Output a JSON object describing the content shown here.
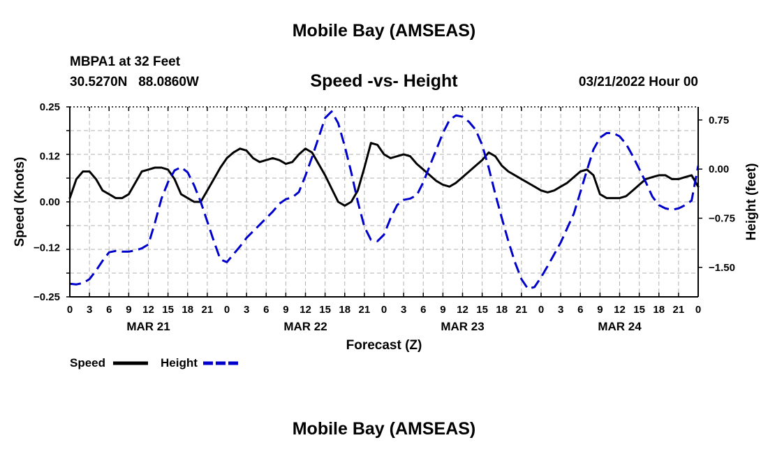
{
  "header": {
    "title": "Mobile Bay (AMSEAS)",
    "station": "MBPA1 at 32 Feet",
    "coordinates": "30.5270N   88.0860W",
    "subtitle": "Speed -vs- Height",
    "datetime": "03/21/2022 Hour 00"
  },
  "footer": {
    "title": "Mobile Bay (AMSEAS)"
  },
  "legend": {
    "speed_label": "Speed",
    "height_label": "Height"
  },
  "colors": {
    "speed": "#000000",
    "height": "#0000cc",
    "grid": "#b0b0b0"
  },
  "chart_data": {
    "type": "line",
    "title": "Speed -vs- Height",
    "xlabel": "Forecast (Z)",
    "ylabel": "Speed (Knots)",
    "y2label": "Height (feet)",
    "xlim": [
      0,
      96
    ],
    "ylim": [
      -0.25,
      0.25
    ],
    "y2lim": [
      -1.95,
      0.95
    ],
    "x_tick_labels": [
      "0",
      "3",
      "6",
      "9",
      "12",
      "15",
      "18",
      "21",
      "0",
      "3",
      "6",
      "9",
      "12",
      "15",
      "18",
      "21",
      "0",
      "3",
      "6",
      "9",
      "12",
      "15",
      "18",
      "21",
      "0",
      "3",
      "6",
      "9",
      "12",
      "15",
      "18",
      "21",
      "0"
    ],
    "x_day_labels": [
      {
        "label": "MAR 21",
        "hour": 12
      },
      {
        "label": "MAR 22",
        "hour": 36
      },
      {
        "label": "MAR 23",
        "hour": 60
      },
      {
        "label": "MAR 24",
        "hour": 84
      }
    ],
    "y_ticks": [
      -0.25,
      -0.12,
      0.0,
      0.12,
      0.25
    ],
    "y_tick_labels": [
      "−0.25",
      "−0.12",
      "0.00",
      "0.12",
      "0.25"
    ],
    "y2_ticks": [
      -1.5,
      -0.75,
      0.0,
      0.75
    ],
    "y2_tick_labels": [
      "−1.50",
      "−0.75",
      "0.00",
      "0.75"
    ],
    "series": [
      {
        "name": "Speed",
        "axis": "left",
        "color": "#000000",
        "dash": "solid",
        "x": [
          0,
          1,
          2,
          3,
          4,
          5,
          6,
          7,
          8,
          9,
          10,
          11,
          12,
          13,
          14,
          15,
          16,
          17,
          18,
          19,
          20,
          21,
          22,
          23,
          24,
          25,
          26,
          27,
          28,
          29,
          30,
          31,
          32,
          33,
          34,
          35,
          36,
          37,
          38,
          39,
          40,
          41,
          42,
          43,
          44,
          45,
          46,
          47,
          48,
          49,
          50,
          51,
          52,
          53,
          54,
          55,
          56,
          57,
          58,
          59,
          60,
          61,
          62,
          63,
          64,
          65,
          66,
          67,
          68,
          69,
          70,
          71,
          72,
          73,
          74,
          75,
          76,
          77,
          78,
          79,
          80,
          81,
          82,
          83,
          84,
          85,
          86,
          87,
          88,
          89,
          90,
          91,
          92,
          93,
          94,
          95,
          96
        ],
        "values": [
          0.01,
          0.06,
          0.08,
          0.08,
          0.06,
          0.03,
          0.02,
          0.01,
          0.01,
          0.02,
          0.05,
          0.08,
          0.085,
          0.09,
          0.09,
          0.085,
          0.06,
          0.02,
          0.01,
          0.0,
          0.0,
          0.03,
          0.06,
          0.09,
          0.115,
          0.13,
          0.14,
          0.135,
          0.115,
          0.105,
          0.11,
          0.115,
          0.11,
          0.1,
          0.105,
          0.125,
          0.14,
          0.13,
          0.1,
          0.07,
          0.035,
          0.0,
          -0.01,
          0.0,
          0.03,
          0.09,
          0.155,
          0.15,
          0.125,
          0.115,
          0.12,
          0.125,
          0.12,
          0.1,
          0.085,
          0.07,
          0.055,
          0.045,
          0.04,
          0.05,
          0.065,
          0.08,
          0.095,
          0.11,
          0.13,
          0.12,
          0.095,
          0.08,
          0.07,
          0.06,
          0.05,
          0.04,
          0.03,
          0.025,
          0.03,
          0.04,
          0.05,
          0.065,
          0.08,
          0.085,
          0.07,
          0.02,
          0.01,
          0.01,
          0.01,
          0.015,
          0.03,
          0.045,
          0.06,
          0.065,
          0.07,
          0.07,
          0.06,
          0.06,
          0.065,
          0.07,
          0.04
        ]
      },
      {
        "name": "Height",
        "axis": "right",
        "color": "#0000cc",
        "dash": "dashed",
        "x": [
          0,
          1,
          2,
          3,
          4,
          5,
          6,
          7,
          8,
          9,
          10,
          11,
          12,
          13,
          14,
          15,
          16,
          17,
          18,
          19,
          20,
          21,
          22,
          23,
          24,
          25,
          26,
          27,
          28,
          29,
          30,
          31,
          32,
          33,
          34,
          35,
          36,
          37,
          38,
          39,
          40,
          41,
          42,
          43,
          44,
          45,
          46,
          47,
          48,
          49,
          50,
          51,
          52,
          53,
          54,
          55,
          56,
          57,
          58,
          59,
          60,
          61,
          62,
          63,
          64,
          65,
          66,
          67,
          68,
          69,
          70,
          71,
          72,
          73,
          74,
          75,
          76,
          77,
          78,
          79,
          80,
          81,
          82,
          83,
          84,
          85,
          86,
          87,
          88,
          89,
          90,
          91,
          92,
          93,
          94,
          95,
          96
        ],
        "values": [
          -1.75,
          -1.76,
          -1.74,
          -1.68,
          -1.55,
          -1.4,
          -1.27,
          -1.25,
          -1.26,
          -1.26,
          -1.24,
          -1.21,
          -1.15,
          -0.82,
          -0.45,
          -0.2,
          -0.02,
          0.03,
          -0.05,
          -0.25,
          -0.5,
          -0.8,
          -1.1,
          -1.38,
          -1.42,
          -1.3,
          -1.18,
          -1.05,
          -0.95,
          -0.85,
          -0.75,
          -0.65,
          -0.53,
          -0.46,
          -0.43,
          -0.35,
          -0.1,
          0.18,
          0.48,
          0.78,
          0.88,
          0.7,
          0.35,
          -0.05,
          -0.5,
          -0.88,
          -1.08,
          -1.1,
          -1.0,
          -0.75,
          -0.55,
          -0.47,
          -0.45,
          -0.4,
          -0.2,
          0.05,
          0.3,
          0.55,
          0.75,
          0.82,
          0.8,
          0.72,
          0.6,
          0.37,
          0.02,
          -0.38,
          -0.75,
          -1.1,
          -1.42,
          -1.68,
          -1.83,
          -1.8,
          -1.65,
          -1.48,
          -1.3,
          -1.12,
          -0.9,
          -0.68,
          -0.35,
          -0.02,
          0.3,
          0.48,
          0.55,
          0.55,
          0.5,
          0.38,
          0.2,
          0.0,
          -0.2,
          -0.42,
          -0.55,
          -0.6,
          -0.62,
          -0.6,
          -0.55,
          -0.48,
          0.05
        ]
      }
    ]
  }
}
